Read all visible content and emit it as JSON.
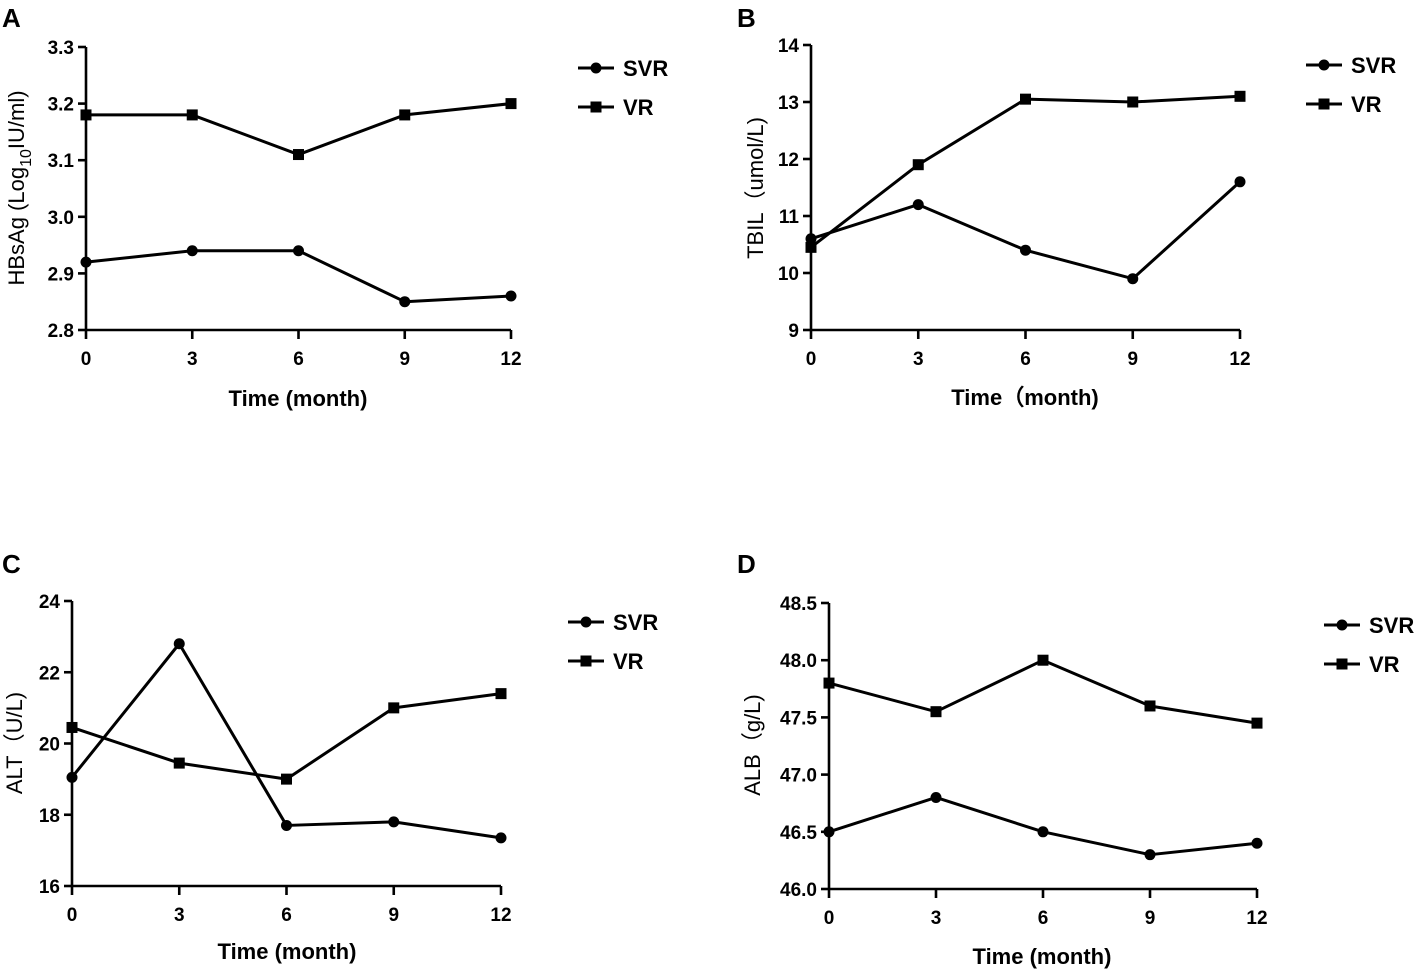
{
  "chart_data": [
    {
      "type": "line",
      "panel": "A",
      "title": "",
      "xlabel": "Time (month)",
      "ylabel_main": "HBsAg (Log",
      "ylabel_sub": "10",
      "ylabel_end": "IU/ml)",
      "x": [
        0,
        3,
        6,
        9,
        12
      ],
      "xticks": [
        "0",
        "3",
        "6",
        "9",
        "12"
      ],
      "ylim": [
        2.8,
        3.3
      ],
      "yticks": [
        "2.8",
        "2.9",
        "3.0",
        "3.1",
        "3.2",
        "3.3"
      ],
      "series": [
        {
          "name": "SVR",
          "marker": "circle",
          "values": [
            2.92,
            2.94,
            2.94,
            2.85,
            2.86
          ]
        },
        {
          "name": "VR",
          "marker": "square",
          "values": [
            3.18,
            3.18,
            3.11,
            3.18,
            3.2
          ]
        }
      ],
      "legend": [
        "SVR",
        "VR"
      ]
    },
    {
      "type": "line",
      "panel": "B",
      "title": "",
      "xlabel": "Time（month)",
      "ylabel_main": "TBIL（umol/L)",
      "x": [
        0,
        3,
        6,
        9,
        12
      ],
      "xticks": [
        "0",
        "3",
        "6",
        "9",
        "12"
      ],
      "ylim": [
        9,
        14
      ],
      "yticks": [
        "9",
        "10",
        "11",
        "12",
        "13",
        "14"
      ],
      "series": [
        {
          "name": "SVR",
          "marker": "circle",
          "values": [
            10.6,
            11.2,
            10.4,
            9.9,
            11.6
          ]
        },
        {
          "name": "VR",
          "marker": "square",
          "values": [
            10.45,
            11.9,
            13.05,
            13.0,
            13.1
          ]
        }
      ],
      "legend": [
        "SVR",
        "VR"
      ]
    },
    {
      "type": "line",
      "panel": "C",
      "title": "",
      "xlabel": "Time (month)",
      "ylabel_main": "ALT（U/L)",
      "x": [
        0,
        3,
        6,
        9,
        12
      ],
      "xticks": [
        "0",
        "3",
        "6",
        "9",
        "12"
      ],
      "ylim": [
        16,
        24
      ],
      "yticks": [
        "16",
        "18",
        "20",
        "22",
        "24"
      ],
      "series": [
        {
          "name": "SVR",
          "marker": "circle",
          "values": [
            19.05,
            22.8,
            17.7,
            17.8,
            17.35
          ]
        },
        {
          "name": "VR",
          "marker": "square",
          "values": [
            20.45,
            19.45,
            19.0,
            21.0,
            21.4
          ]
        }
      ],
      "legend": [
        "SVR",
        "VR"
      ]
    },
    {
      "type": "line",
      "panel": "D",
      "title": "",
      "xlabel": "Time (month)",
      "ylabel_main": "ALB（g/L)",
      "x": [
        0,
        3,
        6,
        9,
        12
      ],
      "xticks": [
        "0",
        "3",
        "6",
        "9",
        "12"
      ],
      "ylim": [
        46.0,
        48.5
      ],
      "yticks": [
        "46.0",
        "46.5",
        "47.0",
        "47.5",
        "48.0",
        "48.5"
      ],
      "series": [
        {
          "name": "SVR",
          "marker": "circle",
          "values": [
            46.5,
            46.8,
            46.5,
            46.3,
            46.4
          ]
        },
        {
          "name": "VR",
          "marker": "square",
          "values": [
            47.8,
            47.55,
            48.0,
            47.6,
            47.45
          ]
        }
      ],
      "legend": [
        "SVR",
        "VR"
      ]
    }
  ]
}
